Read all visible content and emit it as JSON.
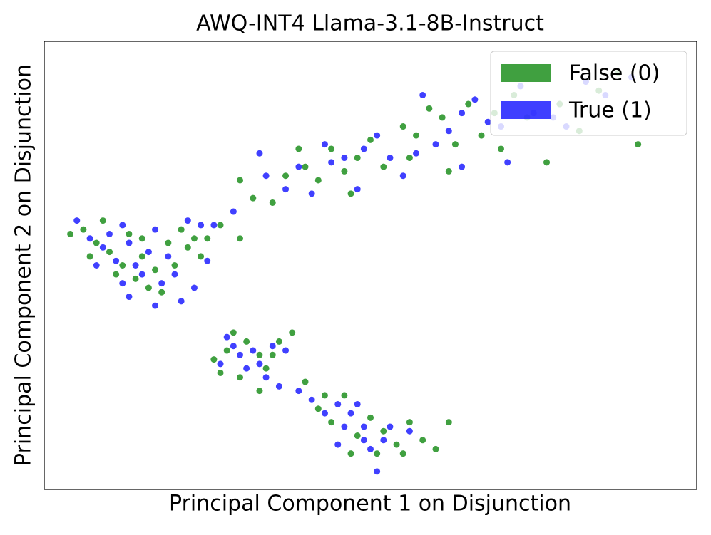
{
  "chart_data": {
    "type": "scatter",
    "title": "AWQ-INT4 Llama-3.1-8B-Instruct",
    "x_label": "Principal Component 1 on Disjunction",
    "y_label": "Principal Component 2 on Disjunction",
    "xlim": [
      0,
      100
    ],
    "ylim": [
      0,
      100
    ],
    "legend": "upper right",
    "series": [
      {
        "name": "False (0)",
        "color": "#008000",
        "x": [
          4,
          6,
          8,
          10,
          12,
          14,
          15,
          17,
          19,
          21,
          22,
          24,
          9,
          13,
          16,
          18,
          11,
          20,
          23,
          25,
          27,
          30,
          7,
          15,
          30,
          32,
          35,
          37,
          40,
          42,
          44,
          46,
          48,
          50,
          52,
          55,
          57,
          59,
          61,
          63,
          65,
          67,
          69,
          72,
          74,
          77,
          79,
          82,
          85,
          88,
          91,
          39,
          47,
          56,
          62,
          70,
          26,
          28,
          29,
          31,
          33,
          34,
          36,
          38,
          30,
          33,
          35,
          27,
          40,
          42,
          44,
          46,
          48,
          50,
          52,
          54,
          56,
          58,
          60,
          62,
          47,
          51,
          43,
          55
        ],
        "values": [
          57,
          58,
          55,
          53,
          50,
          47,
          52,
          49,
          55,
          58,
          54,
          52,
          60,
          57,
          45,
          44,
          48,
          50,
          56,
          56,
          59,
          56,
          52,
          56,
          69,
          65,
          64,
          70,
          72,
          69,
          76,
          71,
          74,
          78,
          72,
          81,
          79,
          85,
          83,
          77,
          86,
          79,
          84,
          88,
          83,
          73,
          86,
          80,
          89,
          93,
          77,
          76,
          66,
          74,
          71,
          76,
          29,
          31,
          35,
          33,
          30,
          27,
          33,
          35,
          25,
          22,
          30,
          26,
          24,
          18,
          15,
          21,
          12,
          16,
          13,
          10,
          15,
          11,
          9,
          15,
          8,
          8,
          21,
          8
        ]
      },
      {
        "name": "True (1)",
        "color": "#0000ff",
        "x": [
          5,
          7,
          9,
          11,
          12,
          13,
          14,
          16,
          17,
          18,
          20,
          21,
          19,
          10,
          15,
          22,
          24,
          26,
          23,
          13,
          8,
          17,
          12,
          25,
          29,
          34,
          37,
          39,
          41,
          43,
          44,
          46,
          48,
          49,
          51,
          53,
          55,
          57,
          58,
          60,
          62,
          64,
          66,
          68,
          70,
          71,
          73,
          75,
          78,
          80,
          83,
          86,
          90,
          33,
          64,
          27,
          29,
          30,
          32,
          33,
          35,
          37,
          34,
          31,
          36,
          28,
          39,
          41,
          43,
          45,
          46,
          47,
          48,
          49,
          50,
          52,
          53,
          51,
          45,
          56,
          49
        ],
        "values": [
          60,
          56,
          54,
          51,
          46,
          43,
          50,
          53,
          58,
          46,
          48,
          42,
          52,
          57,
          48,
          60,
          59,
          59,
          45,
          55,
          50,
          41,
          59,
          51,
          62,
          70,
          67,
          72,
          66,
          77,
          73,
          74,
          67,
          76,
          79,
          74,
          70,
          75,
          88,
          77,
          80,
          84,
          87,
          82,
          81,
          73,
          90,
          84,
          83,
          81,
          91,
          88,
          92,
          75,
          72,
          28,
          32,
          30,
          31,
          28,
          32,
          31,
          25,
          27,
          23,
          34,
          22,
          20,
          17,
          19,
          14,
          17,
          19,
          11,
          9,
          11,
          14,
          4,
          10,
          13,
          14
        ]
      }
    ]
  }
}
